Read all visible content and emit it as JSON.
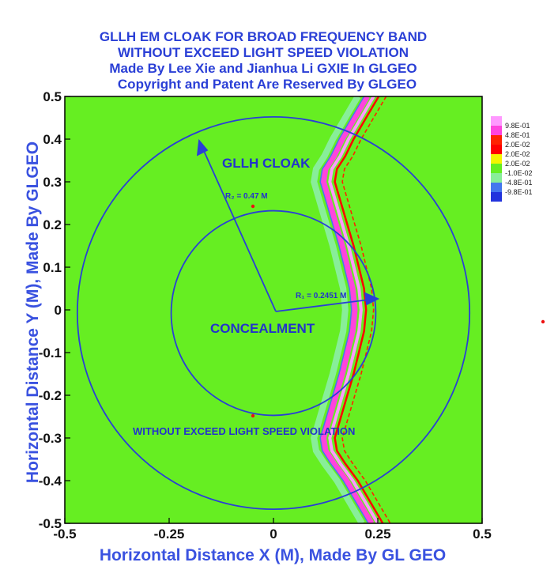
{
  "chart_data": {
    "type": "heatmap",
    "title_lines": [
      "GLLH EM CLOAK FOR BROAD FREQUENCY BAND",
      "WITHOUT EXCEED LIGHT SPEED VIOLATION",
      "Made By Lee Xie and Jianhua Li GXIE In GLGEO",
      "Copyright and Patent Are Reserved By GLGEO"
    ],
    "xlabel": "Horizontal Distance X (M), Made By GL GEO",
    "ylabel": "Horizontal Distance Y (M), Made By GLGEO",
    "xlim": [
      -0.5,
      0.5
    ],
    "ylim": [
      -0.5,
      0.5
    ],
    "x_ticks": [
      "-0.5",
      "-0.25",
      "0",
      "0.25",
      "0.5"
    ],
    "y_ticks": [
      "0.5",
      "0.4",
      "0.3",
      "0.2",
      "0.1",
      "0",
      "-0.1",
      "-0.2",
      "-0.3",
      "-0.4",
      "-0.5"
    ],
    "background_color": "#66ee22",
    "contour_color": "#2a3fd6",
    "circles": [
      {
        "name": "outer-boundary",
        "radius": 0.47
      },
      {
        "name": "inner-boundary",
        "radius": 0.2451
      }
    ],
    "annotations": {
      "cloak_label": "GLLH CLOAK",
      "concealment_label": "CONCEALMENT",
      "violation_label": "WITHOUT EXCEED LIGHT SPEED VIOLATION",
      "r2_label": "R₂ = 0.47 M",
      "r1_label": "R₁ = 0.2451 M"
    },
    "legend": {
      "levels": [
        "9.8E-01",
        "4.8E-01",
        "2.0E-02",
        "2.0E-02",
        "2.0E-02",
        "-1.0E-02",
        "-4.8E-01",
        "-9.8E-01"
      ],
      "colors": [
        "#ff99ff",
        "#ff44dd",
        "#ff2200",
        "#ff0000",
        "#f5f500",
        "#66ee22",
        "#88ee99",
        "#4477ee",
        "#2233dd"
      ]
    },
    "wave_front": {
      "description_units": "data",
      "points_x": [
        0.22,
        0.19,
        0.16,
        0.14,
        0.12,
        0.115,
        0.13,
        0.16,
        0.185,
        0.19,
        0.185,
        0.16,
        0.13,
        0.115,
        0.12,
        0.14,
        0.17,
        0.2,
        0.23
      ],
      "points_y": [
        0.5,
        0.45,
        0.4,
        0.36,
        0.33,
        0.3,
        0.25,
        0.15,
        0.05,
        0.0,
        -0.05,
        -0.15,
        -0.25,
        -0.3,
        -0.33,
        -0.36,
        -0.4,
        -0.45,
        -0.5
      ]
    }
  }
}
